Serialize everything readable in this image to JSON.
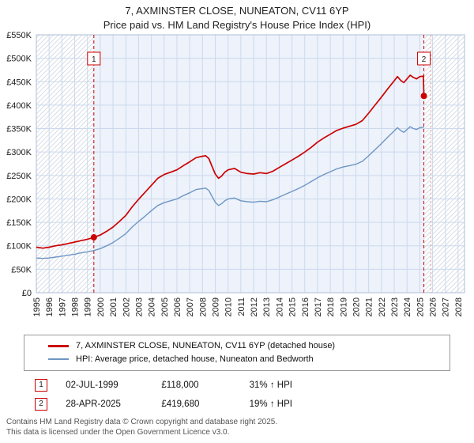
{
  "header": {
    "title": "7, AXMINSTER CLOSE, NUNEATON, CV11 6YP",
    "subtitle": "Price paid vs. HM Land Registry's House Price Index (HPI)"
  },
  "chart_data": {
    "type": "line",
    "title": "7, AXMINSTER CLOSE, NUNEATON, CV11 6YP",
    "subtitle": "Price paid vs. HM Land Registry's House Price Index (HPI)",
    "x_range": [
      1995,
      2028.5
    ],
    "y_range": [
      0,
      550
    ],
    "y_units": "GBP thousands",
    "y_ticks": [
      [
        0,
        "£0"
      ],
      [
        50,
        "£50K"
      ],
      [
        100,
        "£100K"
      ],
      [
        150,
        "£150K"
      ],
      [
        200,
        "£200K"
      ],
      [
        250,
        "£250K"
      ],
      [
        300,
        "£300K"
      ],
      [
        350,
        "£350K"
      ],
      [
        400,
        "£400K"
      ],
      [
        450,
        "£450K"
      ],
      [
        500,
        "£500K"
      ],
      [
        550,
        "£550K"
      ]
    ],
    "x_ticks": [
      1995,
      1996,
      1997,
      1998,
      1999,
      2000,
      2001,
      2002,
      2003,
      2004,
      2005,
      2006,
      2007,
      2008,
      2009,
      2010,
      2011,
      2012,
      2013,
      2014,
      2015,
      2016,
      2017,
      2018,
      2019,
      2020,
      2021,
      2022,
      2023,
      2024,
      2025,
      2026,
      2027,
      2028
    ],
    "grid": true,
    "legend_position": "bottom",
    "colors": {
      "grid": "#ccd9ec",
      "frame": "#aebdd6",
      "shade": "#edf2fb",
      "hatch": "#d8dde6",
      "marker": "#cc0000"
    },
    "shade_region": [
      1999.5,
      2025.32
    ],
    "hatch_regions": [
      [
        1995,
        1999.5
      ],
      [
        2025.32,
        2028.5
      ]
    ],
    "now_x": 2025.85,
    "series": [
      {
        "name": "7, AXMINSTER CLOSE, NUNEATON, CV11 6YP (detached house)",
        "color": "#cc0000",
        "points": [
          [
            1995.0,
            97
          ],
          [
            1995.5,
            95
          ],
          [
            1996.0,
            97
          ],
          [
            1996.5,
            100
          ],
          [
            1997.0,
            102
          ],
          [
            1997.5,
            105
          ],
          [
            1998.0,
            108
          ],
          [
            1998.5,
            111
          ],
          [
            1999.0,
            114
          ],
          [
            1999.5,
            118
          ],
          [
            2000.0,
            123
          ],
          [
            2000.5,
            131
          ],
          [
            2001.0,
            140
          ],
          [
            2001.5,
            152
          ],
          [
            2002.0,
            165
          ],
          [
            2002.5,
            183
          ],
          [
            2003.0,
            199
          ],
          [
            2003.5,
            214
          ],
          [
            2004.0,
            229
          ],
          [
            2004.5,
            244
          ],
          [
            2005.0,
            252
          ],
          [
            2005.5,
            257
          ],
          [
            2006.0,
            262
          ],
          [
            2006.5,
            271
          ],
          [
            2007.0,
            279
          ],
          [
            2007.5,
            288
          ],
          [
            2008.0,
            291
          ],
          [
            2008.25,
            292
          ],
          [
            2008.5,
            286
          ],
          [
            2008.75,
            269
          ],
          [
            2009.0,
            253
          ],
          [
            2009.25,
            244
          ],
          [
            2009.5,
            249
          ],
          [
            2009.75,
            257
          ],
          [
            2010.0,
            262
          ],
          [
            2010.5,
            265
          ],
          [
            2011.0,
            257
          ],
          [
            2011.5,
            254
          ],
          [
            2012.0,
            253
          ],
          [
            2012.5,
            256
          ],
          [
            2013.0,
            254
          ],
          [
            2013.5,
            259
          ],
          [
            2014.0,
            267
          ],
          [
            2014.5,
            275
          ],
          [
            2015.0,
            283
          ],
          [
            2015.5,
            291
          ],
          [
            2016.0,
            300
          ],
          [
            2016.5,
            310
          ],
          [
            2017.0,
            321
          ],
          [
            2017.5,
            330
          ],
          [
            2018.0,
            338
          ],
          [
            2018.5,
            346
          ],
          [
            2019.0,
            351
          ],
          [
            2019.5,
            355
          ],
          [
            2020.0,
            359
          ],
          [
            2020.5,
            367
          ],
          [
            2021.0,
            383
          ],
          [
            2021.5,
            400
          ],
          [
            2022.0,
            417
          ],
          [
            2022.5,
            435
          ],
          [
            2023.0,
            452
          ],
          [
            2023.25,
            461
          ],
          [
            2023.5,
            453
          ],
          [
            2023.75,
            448
          ],
          [
            2024.0,
            456
          ],
          [
            2024.25,
            464
          ],
          [
            2024.5,
            459
          ],
          [
            2024.75,
            456
          ],
          [
            2025.0,
            461
          ],
          [
            2025.28,
            462
          ],
          [
            2025.32,
            419.68
          ]
        ]
      },
      {
        "name": "HPI: Average price, detached house, Nuneaton and Bedworth",
        "color": "#6e96c4",
        "points": [
          [
            1995.0,
            74
          ],
          [
            1995.5,
            73
          ],
          [
            1996.0,
            74
          ],
          [
            1996.5,
            76
          ],
          [
            1997.0,
            78
          ],
          [
            1997.5,
            80
          ],
          [
            1998.0,
            82
          ],
          [
            1998.5,
            85
          ],
          [
            1999.0,
            87
          ],
          [
            1999.5,
            90
          ],
          [
            2000.0,
            94
          ],
          [
            2000.5,
            100
          ],
          [
            2001.0,
            107
          ],
          [
            2001.5,
            116
          ],
          [
            2002.0,
            126
          ],
          [
            2002.5,
            140
          ],
          [
            2003.0,
            152
          ],
          [
            2003.5,
            163
          ],
          [
            2004.0,
            175
          ],
          [
            2004.5,
            186
          ],
          [
            2005.0,
            192
          ],
          [
            2005.5,
            196
          ],
          [
            2006.0,
            200
          ],
          [
            2006.5,
            207
          ],
          [
            2007.0,
            213
          ],
          [
            2007.5,
            220
          ],
          [
            2008.0,
            222
          ],
          [
            2008.25,
            223
          ],
          [
            2008.5,
            218
          ],
          [
            2008.75,
            205
          ],
          [
            2009.0,
            193
          ],
          [
            2009.25,
            186
          ],
          [
            2009.5,
            190
          ],
          [
            2009.75,
            196
          ],
          [
            2010.0,
            200
          ],
          [
            2010.5,
            202
          ],
          [
            2011.0,
            196
          ],
          [
            2011.5,
            194
          ],
          [
            2012.0,
            193
          ],
          [
            2012.5,
            195
          ],
          [
            2013.0,
            194
          ],
          [
            2013.5,
            198
          ],
          [
            2014.0,
            204
          ],
          [
            2014.5,
            210
          ],
          [
            2015.0,
            216
          ],
          [
            2015.5,
            222
          ],
          [
            2016.0,
            229
          ],
          [
            2016.5,
            237
          ],
          [
            2017.0,
            245
          ],
          [
            2017.5,
            252
          ],
          [
            2018.0,
            258
          ],
          [
            2018.5,
            264
          ],
          [
            2019.0,
            268
          ],
          [
            2019.5,
            271
          ],
          [
            2020.0,
            274
          ],
          [
            2020.5,
            280
          ],
          [
            2021.0,
            292
          ],
          [
            2021.5,
            305
          ],
          [
            2022.0,
            318
          ],
          [
            2022.5,
            332
          ],
          [
            2023.0,
            345
          ],
          [
            2023.25,
            352
          ],
          [
            2023.5,
            346
          ],
          [
            2023.75,
            342
          ],
          [
            2024.0,
            348
          ],
          [
            2024.25,
            354
          ],
          [
            2024.5,
            350
          ],
          [
            2024.75,
            348
          ],
          [
            2025.0,
            352
          ],
          [
            2025.32,
            353
          ]
        ]
      }
    ],
    "markers": [
      {
        "label": "1",
        "x": 1999.5,
        "y": 118
      },
      {
        "label": "2",
        "x": 2025.32,
        "y": 419.68
      }
    ]
  },
  "legend": {
    "items": [
      {
        "label": "7, AXMINSTER CLOSE, NUNEATON, CV11 6YP (detached house)",
        "color": "#cc0000"
      },
      {
        "label": "HPI: Average price, detached house, Nuneaton and Bedworth",
        "color": "#6e96c4"
      }
    ]
  },
  "sales": [
    {
      "num": "1",
      "date": "02-JUL-1999",
      "price": "£118,000",
      "hpi": "31% ↑ HPI"
    },
    {
      "num": "2",
      "date": "28-APR-2025",
      "price": "£419,680",
      "hpi": "19% ↑ HPI"
    }
  ],
  "footer": {
    "line1": "Contains HM Land Registry data © Crown copyright and database right 2025.",
    "line2": "This data is licensed under the Open Government Licence v3.0."
  }
}
